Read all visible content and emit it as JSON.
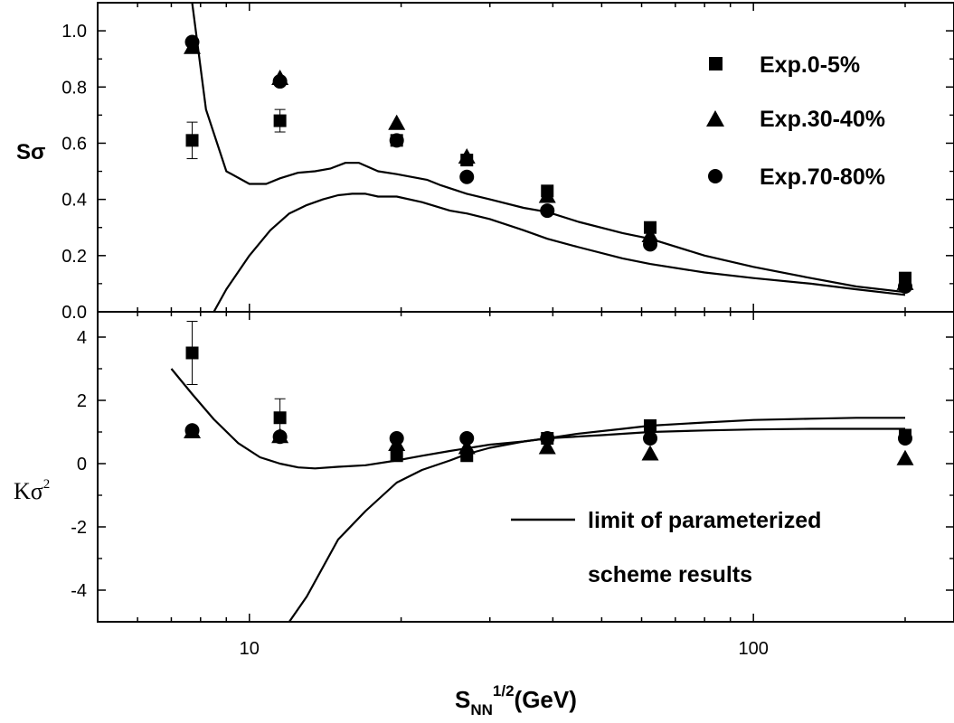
{
  "chart_data": [
    {
      "type": "scatter",
      "panel": "top",
      "ylabel": "Sσ",
      "ylim": [
        0.0,
        1.1
      ],
      "y_ticks": [
        "0.0",
        "0.2",
        "0.4",
        "0.6",
        "0.8",
        "1.0"
      ],
      "x_scale": "log",
      "xlim": [
        5,
        250
      ],
      "legend_position": "top-right",
      "series": [
        {
          "name": "Exp.0-5%",
          "marker": "square",
          "x": [
            7.7,
            11.5,
            19.6,
            27,
            39,
            62.4,
            200
          ],
          "y": [
            0.61,
            0.68,
            0.61,
            0.54,
            0.43,
            0.3,
            0.12
          ],
          "error": [
            0.065,
            0.04,
            0,
            0,
            0,
            0,
            0.02
          ]
        },
        {
          "name": "Exp.30-40%",
          "marker": "triangle",
          "x": [
            7.7,
            11.5,
            19.6,
            27,
            39,
            62.4,
            200
          ],
          "y": [
            0.94,
            0.83,
            0.67,
            0.55,
            0.41,
            0.27,
            0.1
          ]
        },
        {
          "name": "Exp.70-80%",
          "marker": "circle",
          "x": [
            7.7,
            11.5,
            19.6,
            27,
            39,
            62.4,
            200
          ],
          "y": [
            0.96,
            0.82,
            0.61,
            0.48,
            0.36,
            0.24,
            0.09
          ]
        }
      ],
      "curves": [
        {
          "x": [
            7.7,
            8.2,
            9,
            10,
            10.8,
            11.5,
            12.5,
            13.5,
            14.5,
            15.5,
            16.5,
            18,
            19.6,
            21,
            22.5,
            24,
            27,
            30,
            35,
            39,
            45,
            55,
            62.4,
            80,
            100,
            130,
            160,
            200
          ],
          "y": [
            1.1,
            0.72,
            0.5,
            0.455,
            0.455,
            0.475,
            0.495,
            0.5,
            0.51,
            0.53,
            0.53,
            0.5,
            0.49,
            0.48,
            0.47,
            0.45,
            0.42,
            0.4,
            0.37,
            0.355,
            0.32,
            0.28,
            0.26,
            0.2,
            0.16,
            0.12,
            0.09,
            0.07
          ]
        },
        {
          "x": [
            8.5,
            9,
            10,
            11,
            12,
            13,
            14,
            15,
            16,
            17,
            18,
            19.6,
            22,
            25,
            27,
            30,
            35,
            39,
            45,
            55,
            62.4,
            80,
            100,
            130,
            160,
            200
          ],
          "y": [
            0.0,
            0.08,
            0.2,
            0.29,
            0.35,
            0.38,
            0.4,
            0.415,
            0.42,
            0.42,
            0.41,
            0.41,
            0.39,
            0.36,
            0.35,
            0.33,
            0.29,
            0.26,
            0.23,
            0.19,
            0.17,
            0.14,
            0.12,
            0.1,
            0.08,
            0.06
          ]
        }
      ]
    },
    {
      "type": "scatter",
      "panel": "bottom",
      "ylabel": "Kσ",
      "ylabel_sup": "2",
      "ylim": [
        -5,
        4.8
      ],
      "y_ticks": [
        "-4",
        "-2",
        "0",
        "2",
        "4"
      ],
      "x_scale": "log",
      "xlim": [
        5,
        250
      ],
      "x_ticks": [
        "10",
        "100"
      ],
      "xlabel_main": "S",
      "xlabel_sub": "NN",
      "xlabel_sup": "1/2",
      "xlabel_rest": "(GeV)",
      "series": [
        {
          "name": "Exp.0-5%",
          "marker": "square",
          "x": [
            7.7,
            11.5,
            19.6,
            27,
            39,
            62.4,
            200
          ],
          "y": [
            3.5,
            1.45,
            0.25,
            0.25,
            0.8,
            1.2,
            0.9
          ],
          "error": [
            1.0,
            0.6,
            0.15,
            0.1,
            0.1,
            0.1,
            0.1
          ]
        },
        {
          "name": "Exp.30-40%",
          "marker": "triangle",
          "x": [
            7.7,
            11.5,
            19.6,
            27,
            39,
            62.4,
            200
          ],
          "y": [
            1.0,
            0.85,
            0.6,
            0.5,
            0.5,
            0.3,
            0.15
          ]
        },
        {
          "name": "Exp.70-80%",
          "marker": "circle",
          "x": [
            7.7,
            11.5,
            19.6,
            27,
            39,
            62.4,
            200
          ],
          "y": [
            1.05,
            0.85,
            0.8,
            0.8,
            0.8,
            0.8,
            0.8
          ]
        }
      ],
      "curves": [
        {
          "x": [
            7,
            7.7,
            8.5,
            9.5,
            10.5,
            11.5,
            12.5,
            13.5,
            15,
            17,
            19.6,
            22,
            25,
            30,
            35,
            39,
            50,
            62.4,
            80,
            100,
            130,
            160,
            200
          ],
          "y": [
            3.0,
            2.2,
            1.4,
            0.65,
            0.2,
            0.0,
            -0.12,
            -0.15,
            -0.1,
            -0.05,
            0.1,
            0.25,
            0.4,
            0.6,
            0.7,
            0.8,
            0.9,
            1.0,
            1.05,
            1.08,
            1.1,
            1.1,
            1.1
          ]
        },
        {
          "x": [
            12,
            13,
            15,
            17,
            19.6,
            22,
            25,
            27,
            30,
            35,
            39,
            45,
            55,
            62.4,
            80,
            100,
            130,
            160,
            200
          ],
          "y": [
            -5,
            -4.2,
            -2.4,
            -1.5,
            -0.6,
            -0.2,
            0.1,
            0.3,
            0.5,
            0.7,
            0.8,
            0.95,
            1.1,
            1.2,
            1.3,
            1.38,
            1.42,
            1.45,
            1.45
          ]
        }
      ],
      "annotation": [
        "limit of parameterized",
        "scheme results"
      ]
    }
  ]
}
